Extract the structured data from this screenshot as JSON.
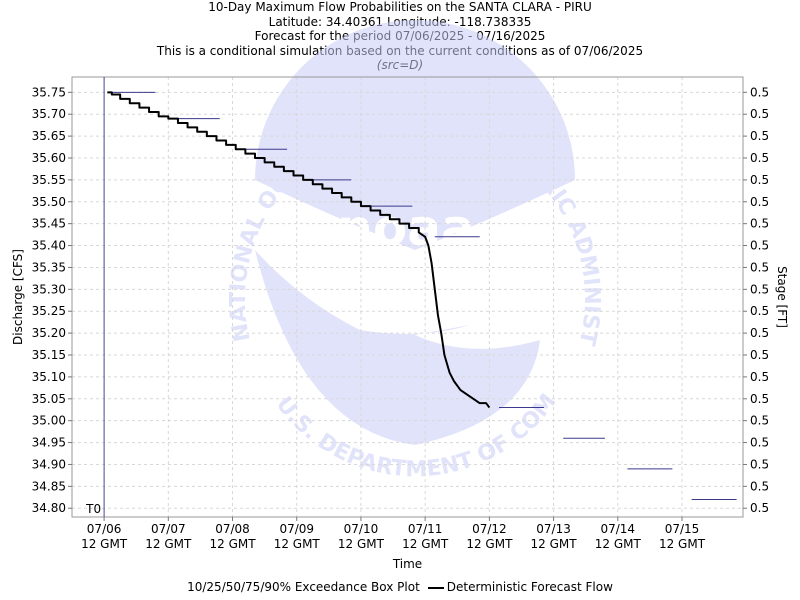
{
  "header": {
    "title": "10-Day Maximum Flow Probabilities on the SANTA CLARA - PIRU",
    "location": "Latitude: 34.40361 Longitude: -118.738335",
    "period": "Forecast for the period 07/06/2025 - 07/16/2025",
    "note": "This is a conditional simulation based on the current conditions as of 07/06/2025",
    "source": "(src=D)"
  },
  "legend": {
    "box_plot": "10/25/50/75/90% Exceedance Box Plot",
    "deterministic": "Deterministic Forecast Flow"
  },
  "watermark": {
    "top_text": "NATIONAL OCEANIC AND ATMOSPHERIC ADMINISTRATION",
    "bottom_text": "U.S. DEPARTMENT OF COMMERCE",
    "logo_text": "noaa"
  },
  "chart_data": {
    "type": "line",
    "xlabel": "Time",
    "ylabel": "Discharge [CFS]",
    "y2label": "Stage [FT]",
    "ylim": [
      34.78,
      35.785
    ],
    "xlim": [
      -0.5,
      9.95
    ],
    "t0_label": "T0",
    "t0_x": 0,
    "grid": true,
    "yticks": [
      35.75,
      35.7,
      35.65,
      35.6,
      35.55,
      35.5,
      35.45,
      35.4,
      35.35,
      35.3,
      35.25,
      35.2,
      35.15,
      35.1,
      35.05,
      35.0,
      34.95,
      34.9,
      34.85,
      34.8
    ],
    "y2ticks": [
      "0.5",
      "0.5",
      "0.5",
      "0.5",
      "0.5",
      "0.5",
      "0.5",
      "0.5",
      "0.5",
      "0.5",
      "0.5",
      "0.5",
      "0.5",
      "0.5",
      "0.5",
      "0.5",
      "0.5",
      "0.5",
      "0.5",
      "0.5"
    ],
    "xticks": [
      {
        "x": 0,
        "date": "07/06",
        "time": "12 GMT"
      },
      {
        "x": 1,
        "date": "07/07",
        "time": "12 GMT"
      },
      {
        "x": 2,
        "date": "07/08",
        "time": "12 GMT"
      },
      {
        "x": 3,
        "date": "07/09",
        "time": "12 GMT"
      },
      {
        "x": 4,
        "date": "07/10",
        "time": "12 GMT"
      },
      {
        "x": 5,
        "date": "07/11",
        "time": "12 GMT"
      },
      {
        "x": 6,
        "date": "07/12",
        "time": "12 GMT"
      },
      {
        "x": 7,
        "date": "07/13",
        "time": "12 GMT"
      },
      {
        "x": 8,
        "date": "07/14",
        "time": "12 GMT"
      },
      {
        "x": 9,
        "date": "07/15",
        "time": "12 GMT"
      }
    ],
    "box_plot_medians": [
      {
        "x0": 0.1,
        "x1": 0.8,
        "value": 35.75
      },
      {
        "x0": 1.15,
        "x1": 1.8,
        "value": 35.69
      },
      {
        "x0": 2.15,
        "x1": 2.85,
        "value": 35.62
      },
      {
        "x0": 3.15,
        "x1": 3.85,
        "value": 35.55
      },
      {
        "x0": 4.15,
        "x1": 4.8,
        "value": 35.49
      },
      {
        "x0": 5.15,
        "x1": 5.85,
        "value": 35.42
      },
      {
        "x0": 6.15,
        "x1": 6.85,
        "value": 35.03
      },
      {
        "x0": 7.15,
        "x1": 7.8,
        "value": 34.96
      },
      {
        "x0": 8.15,
        "x1": 8.85,
        "value": 34.89
      },
      {
        "x0": 9.15,
        "x1": 9.85,
        "value": 34.82
      }
    ],
    "series": [
      {
        "name": "Deterministic Forecast Flow",
        "color": "#000000",
        "x": [
          0.05,
          0.12,
          0.25,
          0.4,
          0.55,
          0.7,
          0.85,
          1.0,
          1.15,
          1.3,
          1.45,
          1.6,
          1.75,
          1.9,
          2.05,
          2.2,
          2.35,
          2.5,
          2.65,
          2.8,
          2.95,
          3.1,
          3.25,
          3.4,
          3.55,
          3.7,
          3.85,
          4.0,
          4.15,
          4.3,
          4.45,
          4.6,
          4.75,
          4.9,
          5.0,
          5.05,
          5.1,
          5.15,
          5.2,
          5.25,
          5.3,
          5.38,
          5.45,
          5.55,
          5.65,
          5.75,
          5.85,
          5.95,
          6.0
        ],
        "values": [
          35.75,
          35.745,
          35.735,
          35.725,
          35.715,
          35.705,
          35.695,
          35.69,
          35.68,
          35.67,
          35.66,
          35.65,
          35.64,
          35.63,
          35.62,
          35.61,
          35.6,
          35.59,
          35.58,
          35.57,
          35.56,
          35.55,
          35.54,
          35.53,
          35.52,
          35.51,
          35.5,
          35.49,
          35.48,
          35.47,
          35.46,
          35.45,
          35.44,
          35.43,
          35.42,
          35.4,
          35.36,
          35.3,
          35.24,
          35.2,
          35.15,
          35.11,
          35.09,
          35.07,
          35.06,
          35.05,
          35.04,
          35.04,
          35.03
        ]
      }
    ]
  }
}
